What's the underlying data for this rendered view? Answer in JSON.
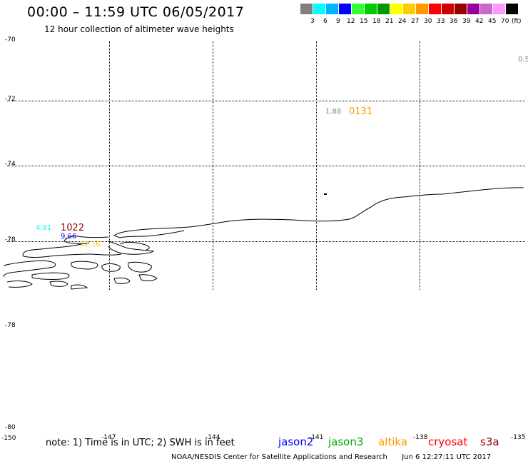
{
  "header": {
    "title": "00:00 – 11:59 UTC 06/05/2017",
    "subtitle": "12 hour collection of altimeter wave heights"
  },
  "legend": {
    "colors": [
      "#808080",
      "#00ffff",
      "#00b4ff",
      "#0000ff",
      "#33ff33",
      "#00cc00",
      "#009900",
      "#ffff00",
      "#ffcc00",
      "#ff9900",
      "#ff0000",
      "#cc0000",
      "#990000",
      "#990099",
      "#cc66cc",
      "#ff99ff",
      "#000000"
    ],
    "ticks": [
      "3",
      "6",
      "9",
      "12",
      "15",
      "18",
      "21",
      "24",
      "27",
      "30",
      "33",
      "36",
      "39",
      "42",
      "45",
      "70"
    ],
    "unit": "(ft)"
  },
  "axes": {
    "y_labels": [
      "-70",
      "-72",
      "-74",
      "-76",
      "-78",
      "-78",
      "-80"
    ],
    "x_labels": [
      "-150",
      "-147",
      "-144",
      "-141",
      "-138",
      "-135"
    ]
  },
  "markers": {
    "top_right_value": "0.5",
    "h1": "1.88",
    "t1": "0131",
    "h2": "4.81",
    "t2": "1022",
    "h3": "9.66",
    "h4": "12.16"
  },
  "footer": {
    "note": "note: 1) Time is in UTC; 2) SWH is in feet",
    "satellites": [
      "jason2",
      "jason3",
      "altika",
      "cryosat",
      "s3a"
    ],
    "sat_colors": [
      "#0000ff",
      "#00aa00",
      "#ff9900",
      "#ff0000",
      "#990000"
    ],
    "credit": "NOAA/NESDIS Center for Satellite Applications and Research",
    "timestamp": "Jun  6 12:27:11 UTC 2017"
  }
}
